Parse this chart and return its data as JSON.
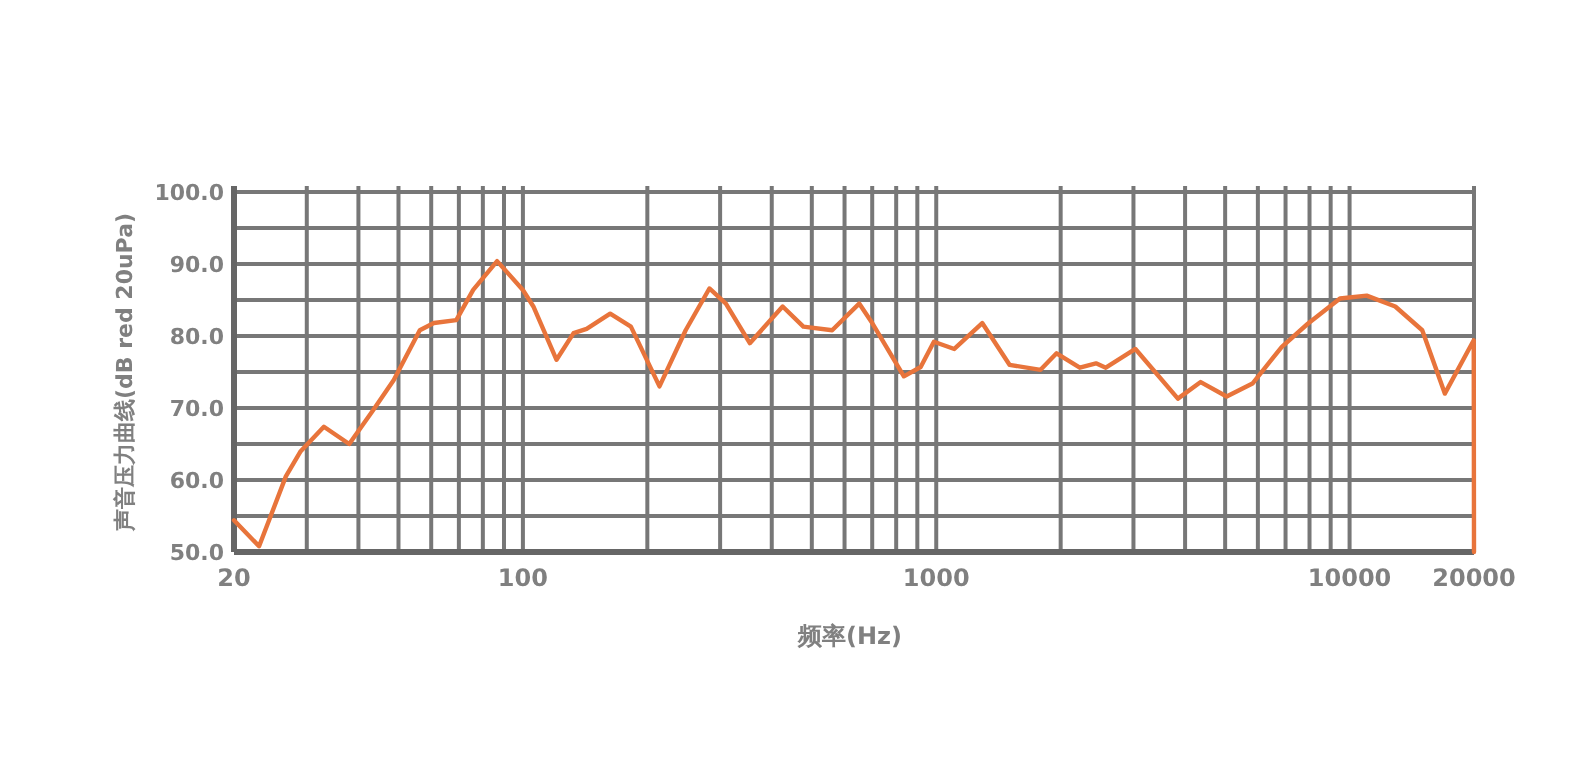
{
  "chart_data": {
    "type": "line",
    "xlabel": "频率(Hz)",
    "ylabel": "声音压力曲线(dB red 20uPa)",
    "log": "x",
    "grid": true,
    "marker": "none",
    "line_style": "solid",
    "xlim": [
      20,
      20000
    ],
    "ylim": [
      50,
      100
    ],
    "xticks": [
      {
        "value": 20,
        "label": "20"
      },
      {
        "value": 30,
        "label": null
      },
      {
        "value": 40,
        "label": null
      },
      {
        "value": 50,
        "label": null
      },
      {
        "value": 60,
        "label": null
      },
      {
        "value": 70,
        "label": null
      },
      {
        "value": 80,
        "label": null
      },
      {
        "value": 90,
        "label": null
      },
      {
        "value": 100,
        "label": "100"
      },
      {
        "value": 200,
        "label": null
      },
      {
        "value": 300,
        "label": null
      },
      {
        "value": 400,
        "label": null
      },
      {
        "value": 500,
        "label": null
      },
      {
        "value": 600,
        "label": null
      },
      {
        "value": 700,
        "label": null
      },
      {
        "value": 800,
        "label": null
      },
      {
        "value": 900,
        "label": null
      },
      {
        "value": 1000,
        "label": "1000"
      },
      {
        "value": 2000,
        "label": null
      },
      {
        "value": 3000,
        "label": null
      },
      {
        "value": 4000,
        "label": null
      },
      {
        "value": 5000,
        "label": null
      },
      {
        "value": 6000,
        "label": null
      },
      {
        "value": 7000,
        "label": null
      },
      {
        "value": 8000,
        "label": null
      },
      {
        "value": 9000,
        "label": null
      },
      {
        "value": 10000,
        "label": "10000"
      },
      {
        "value": 20000,
        "label": "20000"
      }
    ],
    "yticks": [
      {
        "value": 50,
        "label": "50.0"
      },
      {
        "value": 55,
        "label": null
      },
      {
        "value": 60,
        "label": "60.0"
      },
      {
        "value": 65,
        "label": null
      },
      {
        "value": 70,
        "label": "70.0"
      },
      {
        "value": 75,
        "label": null
      },
      {
        "value": 80,
        "label": "80.0"
      },
      {
        "value": 85,
        "label": null
      },
      {
        "value": 90,
        "label": "90.0"
      },
      {
        "value": 95,
        "label": null
      },
      {
        "value": 100,
        "label": "100.0"
      }
    ],
    "series": [
      {
        "color": "#e8743b",
        "x": [
          20,
          23,
          26.7,
          29,
          33,
          38,
          43.4,
          48.7,
          56.3,
          60.9,
          69,
          75.8,
          86.6,
          100,
          106,
          120.6,
          132.6,
          142.6,
          162.6,
          182.5,
          214,
          247.6,
          282.6,
          309.8,
          354,
          425,
          477,
          560,
          651,
          700,
          835,
          917,
          987,
          1106,
          1292,
          1504,
          1788,
          1955,
          2225,
          2435,
          2572,
          3033,
          3843,
          4363,
          5042,
          5822,
          6856,
          7923,
          9480,
          11000,
          12900,
          14990,
          17000,
          19970,
          20000
        ],
        "values": [
          54.4,
          50.8,
          60.5,
          64,
          67.4,
          65,
          69.7,
          73.9,
          80.8,
          81.8,
          82.2,
          86.4,
          90.4,
          86.4,
          84.1,
          76.7,
          80.4,
          81,
          83.1,
          81.3,
          73,
          80.8,
          86.6,
          84.5,
          79,
          84.1,
          81.3,
          80.8,
          84.5,
          81.8,
          74.4,
          75.7,
          79.2,
          78.2,
          81.8,
          76,
          75.3,
          77.6,
          75.6,
          76.2,
          75.6,
          78.2,
          71.3,
          73.6,
          71.6,
          73.4,
          78.5,
          81.7,
          85.2,
          85.6,
          84.1,
          80.8,
          72,
          79.4,
          50
        ]
      }
    ]
  }
}
